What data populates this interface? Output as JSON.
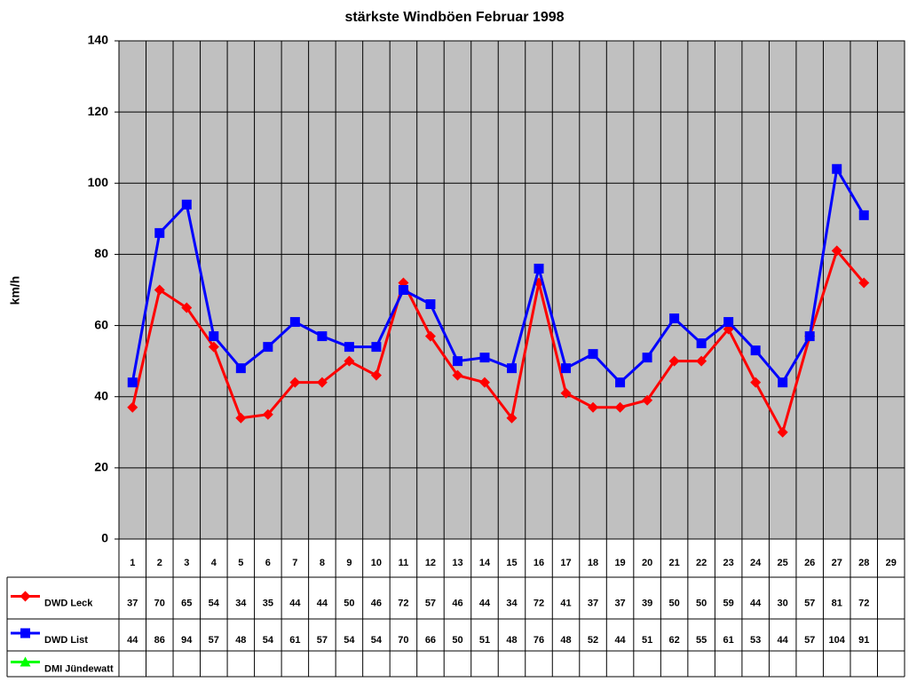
{
  "chart_data": {
    "type": "line",
    "title": "stärkste Windböen Februar 1998",
    "y_label": "km/h",
    "categories": [
      1,
      2,
      3,
      4,
      5,
      6,
      7,
      8,
      9,
      10,
      11,
      12,
      13,
      14,
      15,
      16,
      17,
      18,
      19,
      20,
      21,
      22,
      23,
      24,
      25,
      26,
      27,
      28,
      29
    ],
    "series": [
      {
        "name": "DWD Leck",
        "color": "#ff0000",
        "marker": "diamond",
        "values": [
          37,
          70,
          65,
          54,
          34,
          35,
          44,
          44,
          50,
          46,
          72,
          57,
          46,
          44,
          34,
          72,
          41,
          37,
          37,
          39,
          50,
          50,
          59,
          44,
          30,
          57,
          81,
          72,
          null
        ]
      },
      {
        "name": "DWD List",
        "color": "#0000ff",
        "marker": "square",
        "values": [
          44,
          86,
          94,
          57,
          48,
          54,
          61,
          57,
          54,
          54,
          70,
          66,
          50,
          51,
          48,
          76,
          48,
          52,
          44,
          51,
          62,
          55,
          61,
          53,
          44,
          57,
          104,
          91,
          null
        ]
      },
      {
        "name": "DMI Jündewatt",
        "color": "#00ff00",
        "marker": "triangle",
        "values": [
          null,
          null,
          null,
          null,
          null,
          null,
          null,
          null,
          null,
          null,
          null,
          null,
          null,
          null,
          null,
          null,
          null,
          null,
          null,
          null,
          null,
          null,
          null,
          null,
          null,
          null,
          null,
          null,
          null
        ]
      }
    ],
    "ylim": [
      0,
      140
    ],
    "yticks": [
      0,
      20,
      40,
      60,
      80,
      100,
      120,
      140
    ],
    "grid": true
  }
}
